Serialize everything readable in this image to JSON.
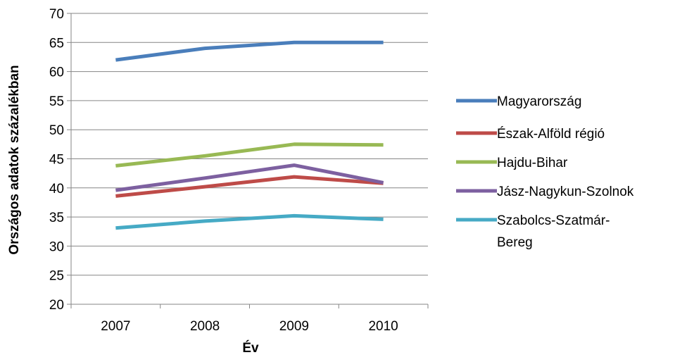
{
  "chart_data": {
    "type": "line",
    "categories": [
      "2007",
      "2008",
      "2009",
      "2010"
    ],
    "xlabel": "Év",
    "ylabel": "Országos adatok százalékban",
    "ylim": [
      20,
      70
    ],
    "yticks": [
      20,
      25,
      30,
      35,
      40,
      45,
      50,
      55,
      60,
      65,
      70
    ],
    "grid": true,
    "legend_position": "right",
    "series": [
      {
        "name": "Magyarország",
        "legend_lines": [
          "Magyarország"
        ],
        "color": "#4A7EBB",
        "values": [
          62,
          64,
          65,
          65
        ]
      },
      {
        "name": "Észak-Alföld régió",
        "legend_lines": [
          "Észak-Alföld régió"
        ],
        "color": "#BE4B48",
        "values": [
          38.6,
          40.2,
          41.9,
          40.8
        ]
      },
      {
        "name": "Hajdu-Bihar",
        "legend_lines": [
          "Hajdu-Bihar"
        ],
        "color": "#98B954",
        "values": [
          43.8,
          45.5,
          47.5,
          47.4
        ]
      },
      {
        "name": "Jász-Nagykun-Szolnok",
        "legend_lines": [
          "Jász-Nagykun-Szolnok"
        ],
        "color": "#7D60A0",
        "values": [
          39.6,
          41.7,
          43.9,
          40.9
        ]
      },
      {
        "name": "Szabolcs-Szatmár-Bereg",
        "legend_lines": [
          "Szabolcs-Szatmár-",
          "Bereg"
        ],
        "color": "#46AAC5",
        "values": [
          33.1,
          34.3,
          35.2,
          34.6
        ]
      }
    ]
  }
}
